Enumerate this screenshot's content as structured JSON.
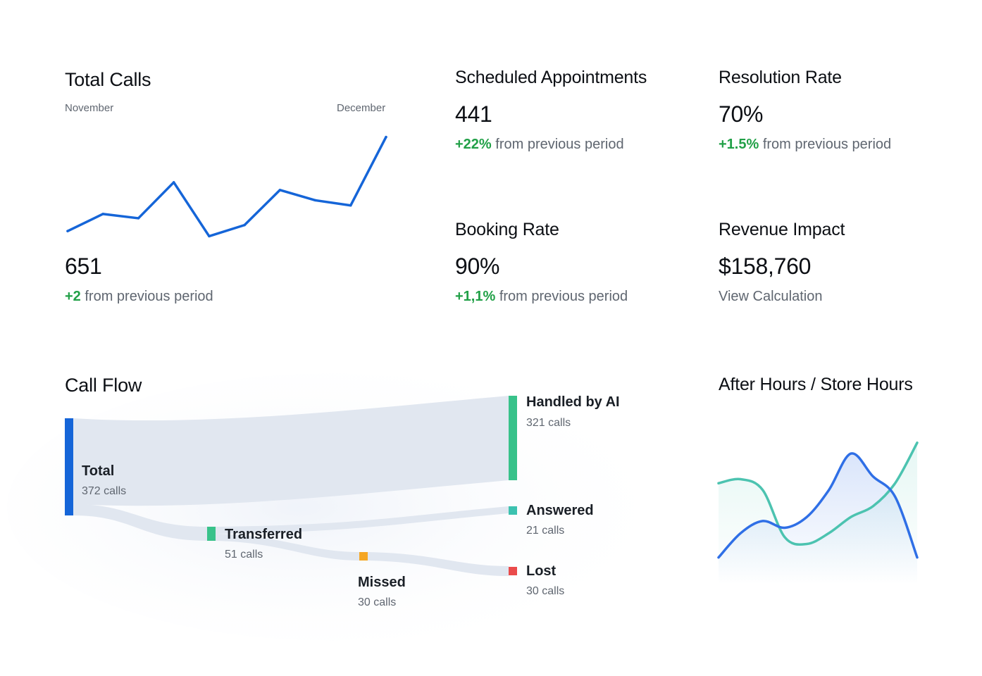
{
  "total_calls": {
    "title": "Total Calls",
    "month_start": "November",
    "month_end": "December",
    "value": "651",
    "delta": "+2",
    "delta_suffix": " from previous period",
    "line_color": "#1565d8"
  },
  "scheduled_appointments": {
    "title": "Scheduled Appointments",
    "value": "441",
    "delta": "+22%",
    "delta_suffix": " from previous period"
  },
  "resolution_rate": {
    "title": "Resolution Rate",
    "value": "70%",
    "delta": "+1.5%",
    "delta_suffix": " from previous period"
  },
  "booking_rate": {
    "title": "Booking Rate",
    "value": "90%",
    "delta": "+1,1%",
    "delta_suffix": " from previous period"
  },
  "revenue_impact": {
    "title": "Revenue Impact",
    "value": "$158,760",
    "link_label": "View Calculation"
  },
  "call_flow": {
    "title": "Call Flow",
    "nodes": {
      "total": {
        "label": "Total",
        "sub": "372 calls",
        "color": "#1565d8"
      },
      "transferred": {
        "label": "Transferred",
        "sub": "51 calls",
        "color": "#38c28a"
      },
      "missed": {
        "label": "Missed",
        "sub": "30 calls",
        "color": "#f5a623"
      },
      "handled": {
        "label": "Handled by AI",
        "sub": "321 calls",
        "color": "#38c28a"
      },
      "answered": {
        "label": "Answered",
        "sub": "21 calls",
        "color": "#3cc2b0"
      },
      "lost": {
        "label": "Lost",
        "sub": "30 calls",
        "color": "#ea4b4b"
      }
    },
    "flow_color": "#e1e7f0"
  },
  "after_hours": {
    "title": "After Hours / Store Hours",
    "series_colors": {
      "after_hours": "#2f6fe6",
      "store_hours": "#4cc3b0"
    }
  },
  "chart_data": [
    {
      "type": "line",
      "title": "Total Calls",
      "xlabel": "",
      "ylabel": "",
      "x_range": [
        "November",
        "December"
      ],
      "series": [
        {
          "name": "Total Calls",
          "values": [
            18,
            38,
            33,
            75,
            12,
            25,
            66,
            54,
            48,
            128
          ]
        }
      ],
      "ylim": [
        0,
        140
      ],
      "grid": false
    },
    {
      "type": "area",
      "title": "After Hours / Store Hours",
      "series": [
        {
          "name": "After Hours",
          "values": [
            20,
            38,
            47,
            42,
            50,
            70,
            97,
            80,
            65,
            20
          ]
        },
        {
          "name": "Store Hours",
          "values": [
            75,
            78,
            70,
            35,
            30,
            38,
            50,
            58,
            75,
            105
          ]
        }
      ],
      "ylim": [
        0,
        120
      ],
      "grid": false
    }
  ]
}
